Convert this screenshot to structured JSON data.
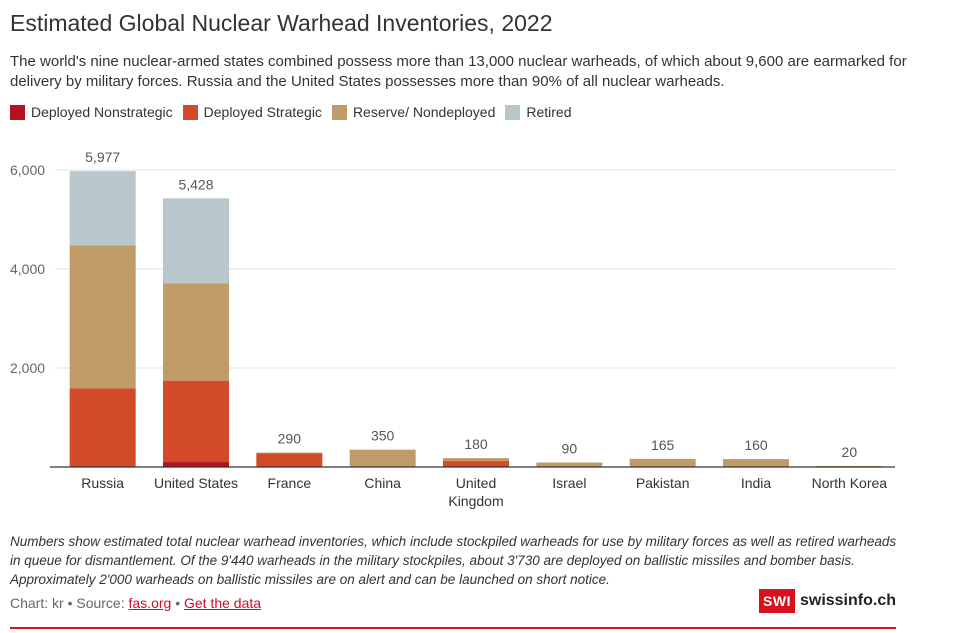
{
  "header": {
    "title": "Estimated Global Nuclear Warhead Inventories, 2022",
    "subtitle": "The world's nine nuclear-armed states combined possess more than 13,000 nuclear warheads, of which about 9,600 are earmarked for delivery by military forces. Russia and the United States possesses more than 90% of all nuclear warheads."
  },
  "chart_data": {
    "type": "bar",
    "stacked": true,
    "categories": [
      "Russia",
      "United States",
      "France",
      "China",
      "United Kingdom",
      "Israel",
      "Pakistan",
      "India",
      "North Korea"
    ],
    "category_labels": [
      [
        "Russia"
      ],
      [
        "United States"
      ],
      [
        "France"
      ],
      [
        "China"
      ],
      [
        "United",
        "Kingdom"
      ],
      [
        "Israel"
      ],
      [
        "Pakistan"
      ],
      [
        "India"
      ],
      [
        "North Korea"
      ]
    ],
    "series": [
      {
        "name": "Deployed Nonstrategic",
        "color": "#b5121b",
        "values": [
          0,
          100,
          0,
          0,
          0,
          0,
          0,
          0,
          0
        ]
      },
      {
        "name": "Deployed Strategic",
        "color": "#d34a28",
        "values": [
          1588,
          1644,
          280,
          0,
          120,
          0,
          0,
          0,
          0
        ]
      },
      {
        "name": "Reserve/ Nondeployed",
        "color": "#bf9b67",
        "values": [
          2889,
          1964,
          10,
          350,
          60,
          90,
          165,
          160,
          20
        ]
      },
      {
        "name": "Retired",
        "color": "#b9c6cc",
        "values": [
          1500,
          1720,
          0,
          0,
          0,
          0,
          0,
          0,
          0
        ]
      }
    ],
    "totals": [
      "5,977",
      "5,428",
      "290",
      "350",
      "180",
      "90",
      "165",
      "160",
      "20"
    ],
    "y_ticks": [
      0,
      2000,
      4000,
      6000
    ],
    "y_tick_labels": [
      "",
      "2,000",
      "4,000",
      "6,000"
    ],
    "ylim": [
      0,
      6000
    ],
    "grid": true,
    "legend_position": "top-left"
  },
  "footer": {
    "notes": "Numbers show estimated total nuclear warhead inventories, which include stockpiled warheads for use by military forces as well as retired warheads in queue for dismantlement. Of the 9'440 warheads in the military stockpiles, about 3'730 are deployed on ballistic missiles and bomber basis. Approximately 2'000 warheads on ballistic missiles are on alert and can be launched on short notice.",
    "credit_prefix": "Chart: kr • Source: ",
    "source_link": "fas.org",
    "separator": " • ",
    "data_link": "Get the data",
    "brand_box": "SWI",
    "brand_name": "swissinfo.ch"
  }
}
